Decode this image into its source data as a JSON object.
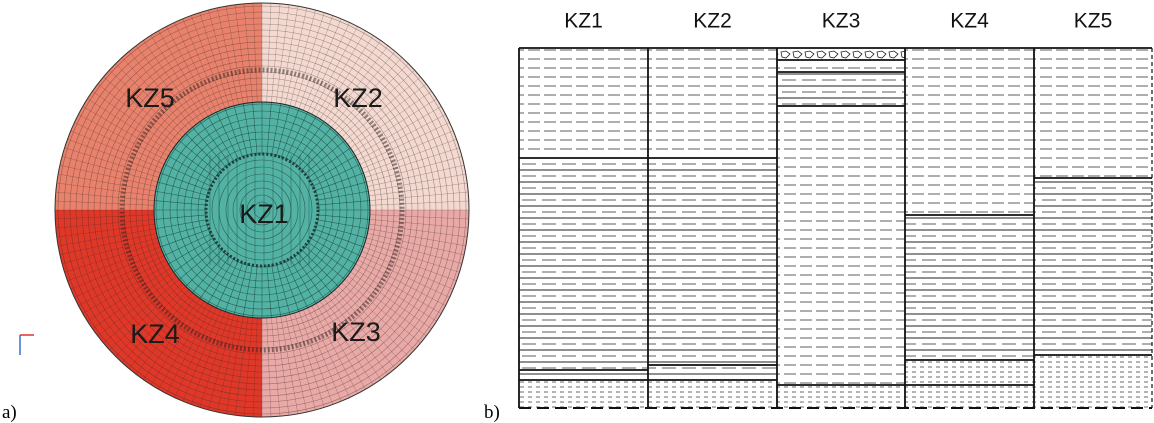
{
  "figure": {
    "panel_a": {
      "label": "a)",
      "zones": [
        "KZ5",
        "KZ2",
        "KZ1",
        "KZ4",
        "KZ3"
      ]
    },
    "panel_b": {
      "label": "b)",
      "columns": [
        "KZ1",
        "KZ2",
        "KZ3",
        "KZ4",
        "KZ5"
      ]
    }
  }
}
